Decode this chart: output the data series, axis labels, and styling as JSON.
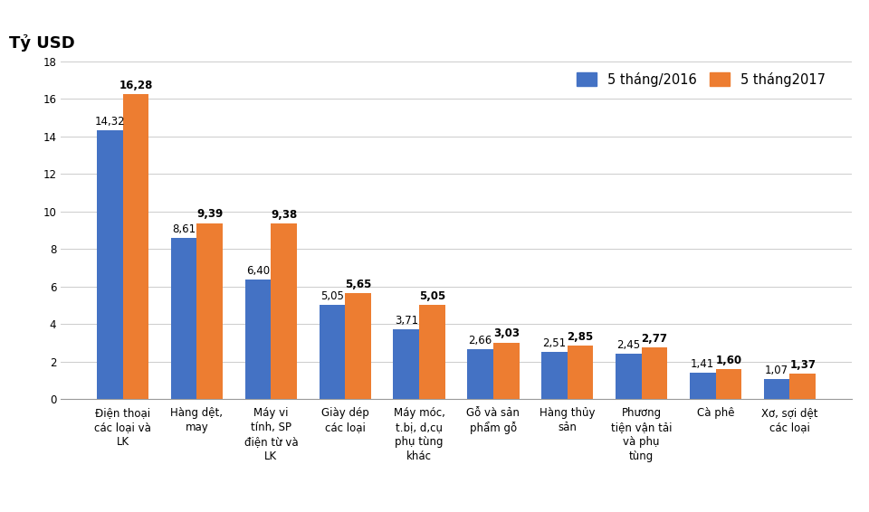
{
  "categories": [
    "Điện thoại\ncác loại và\nLK",
    "Hàng dệt,\nmay",
    "Máy vi\ntính, SP\nđiện từ và\nLK",
    "Giày dép\ncác loại",
    "Máy móc,\nt.bị, d,cụ\nphụ tùng\nkhác",
    "Gỗ và sản\nphẩm gỗ",
    "Hàng thủy\nsản",
    "Phương\ntiện vận tải\nvà phụ\ntùng",
    "Cà phê",
    "Xơ, sợi dệt\ncác loại"
  ],
  "values_2016": [
    14.32,
    8.61,
    6.4,
    5.05,
    3.71,
    2.66,
    2.51,
    2.45,
    1.41,
    1.07
  ],
  "values_2017": [
    16.28,
    9.39,
    9.38,
    5.65,
    5.05,
    3.03,
    2.85,
    2.77,
    1.6,
    1.37
  ],
  "color_2016": "#4472C4",
  "color_2017": "#ED7D31",
  "legend_2016": "5 tháng/2016",
  "legend_2017": "5 tháng2017",
  "ylabel": "Tỷ USD",
  "ylim": [
    0,
    18
  ],
  "yticks": [
    0,
    2,
    4,
    6,
    8,
    10,
    12,
    14,
    16,
    18
  ],
  "bar_width": 0.35,
  "label_fontsize": 8.5,
  "tick_fontsize": 8.5,
  "ylabel_fontsize": 13,
  "legend_fontsize": 10.5,
  "bg_color": "#FFFFFF"
}
